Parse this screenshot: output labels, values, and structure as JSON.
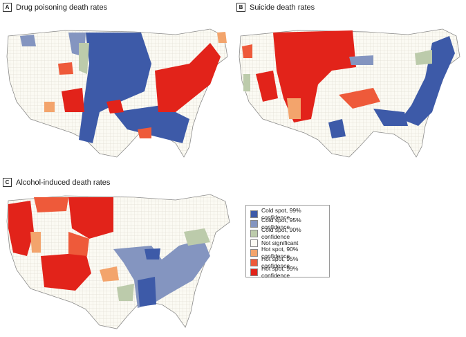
{
  "panels": {
    "a": {
      "letter": "A",
      "title": "Drug poisoning death rates"
    },
    "b": {
      "letter": "B",
      "title": "Suicide death rates"
    },
    "c": {
      "letter": "C",
      "title": "Alcohol-induced death rates"
    }
  },
  "legend": {
    "items": [
      {
        "label": "Cold spot, 99% confidence",
        "color": "#3d5aa8"
      },
      {
        "label": "Cold spot, 95% confidence",
        "color": "#8495c0"
      },
      {
        "label": "Cold spot, 90% confidence",
        "color": "#bccbab"
      },
      {
        "label": "Not significant",
        "color": "#fbfaf3"
      },
      {
        "label": "Hot spot, 90% confidence",
        "color": "#f3a46c"
      },
      {
        "label": "Hot spot, 95% confidence",
        "color": "#ee5a3a"
      },
      {
        "label": "Hot spot, 99% confidence",
        "color": "#e2231a"
      }
    ]
  }
}
